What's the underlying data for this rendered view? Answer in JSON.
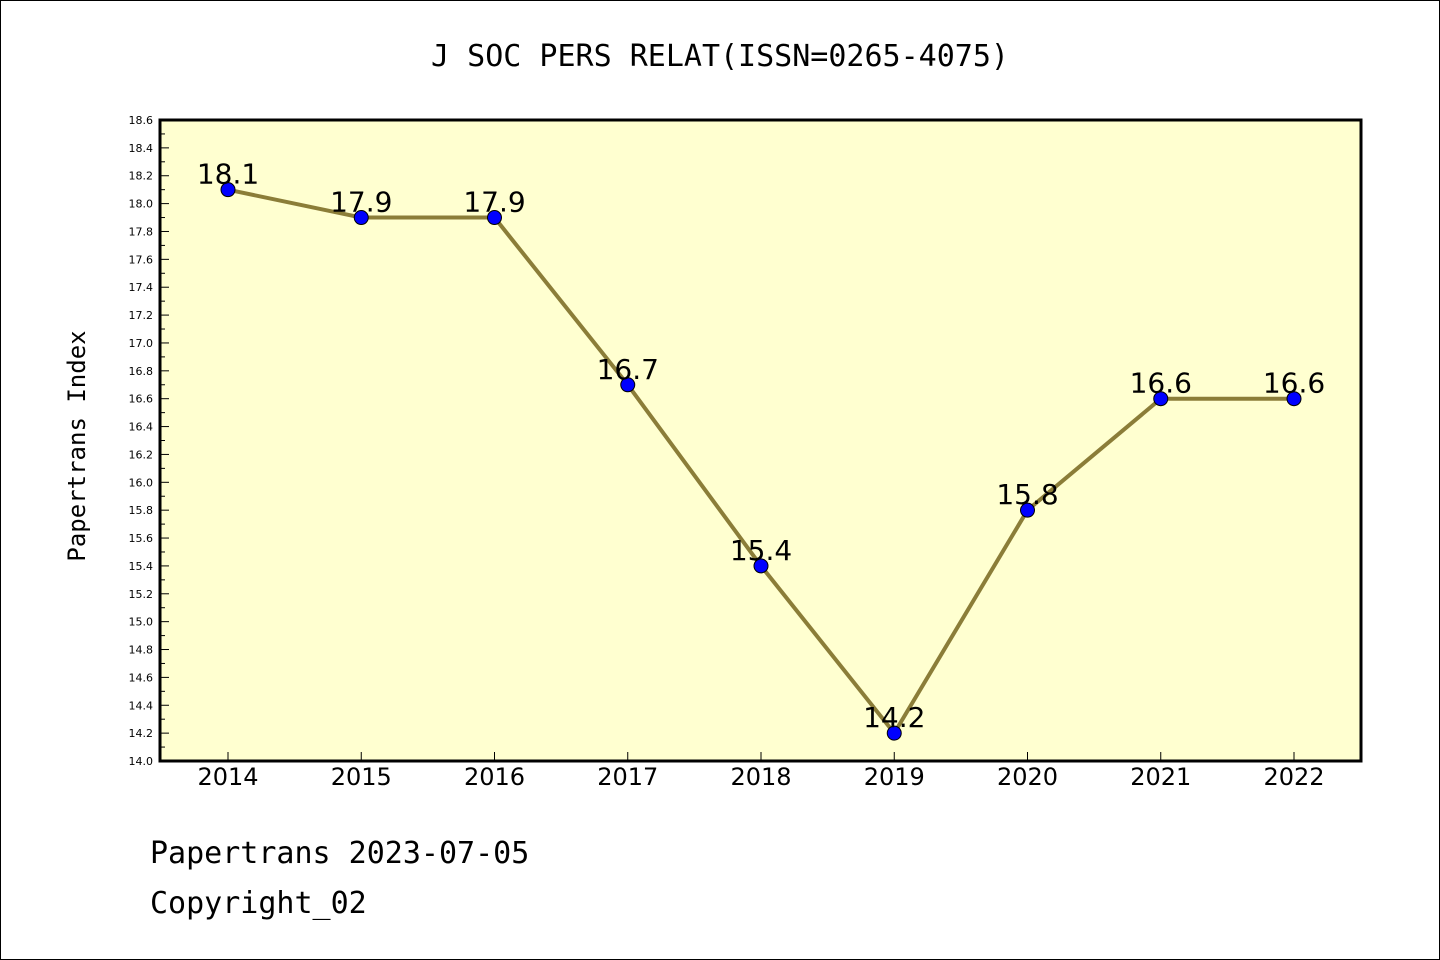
{
  "chart_data": {
    "type": "line",
    "title": "J SOC PERS RELAT(ISSN=0265-4075)",
    "xlabel": "",
    "ylabel": "Papertrans Index",
    "categories": [
      "2014",
      "2015",
      "2016",
      "2017",
      "2018",
      "2019",
      "2020",
      "2021",
      "2022"
    ],
    "series": [
      {
        "values": [
          18.1,
          17.9,
          17.9,
          16.7,
          15.4,
          14.2,
          15.8,
          16.6,
          16.6
        ],
        "data_labels": [
          "18.1",
          "17.9",
          "17.9",
          "16.7",
          "15.4",
          "14.2",
          "15.8",
          "16.6",
          "16.6"
        ]
      }
    ],
    "ylim": [
      14.0,
      18.6
    ],
    "yticks": [
      "14.0",
      "14.2",
      "14.4",
      "14.6",
      "14.8",
      "15.0",
      "15.2",
      "15.4",
      "15.6",
      "15.8",
      "16.0",
      "16.2",
      "16.4",
      "16.6",
      "16.8",
      "17.0",
      "17.2",
      "17.4",
      "17.6",
      "17.8",
      "18.0",
      "18.2",
      "18.4",
      "18.6"
    ],
    "grid": false,
    "legend": "none",
    "colors": {
      "plot_background": "#ffffd0",
      "line": "#8b7d38",
      "marker": "#0000ff"
    }
  },
  "footer": {
    "line1": "Papertrans 2023-07-05",
    "line2": "Copyright_02"
  }
}
